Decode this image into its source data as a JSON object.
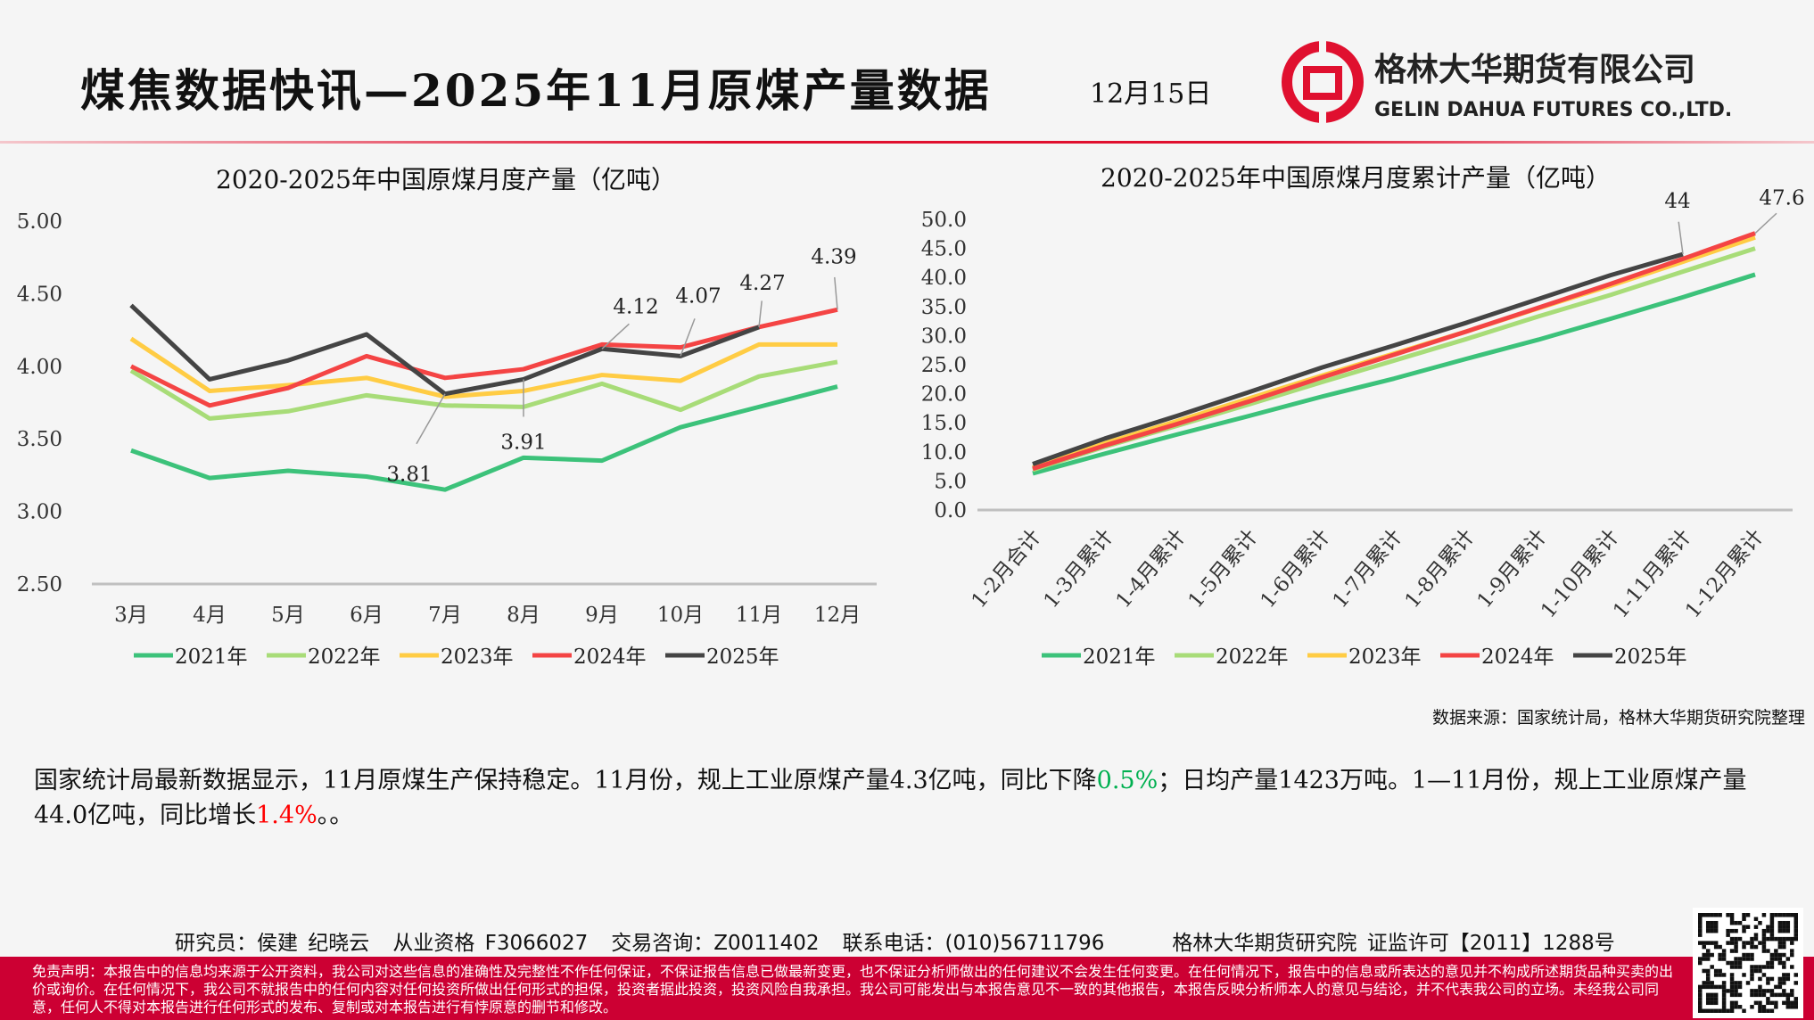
{
  "header": {
    "title": "煤焦数据快讯—2025年11月原煤产量数据",
    "date": "12月15日",
    "logo_cn": "格林大华期货有限公司",
    "logo_en": "GELIN DAHUA FUTURES CO.,LTD."
  },
  "colors": {
    "accent": "#e0102f",
    "s2021": "#3cc27a",
    "s2022": "#a8dc78",
    "s2023": "#ffcc44",
    "s2024": "#f44444",
    "s2025": "#444444"
  },
  "chart_data": [
    {
      "type": "line",
      "title": "2020-2025年中国原煤月度产量（亿吨）",
      "categories": [
        "3月",
        "4月",
        "5月",
        "6月",
        "7月",
        "8月",
        "9月",
        "10月",
        "11月",
        "12月"
      ],
      "ylim": [
        2.5,
        5.0
      ],
      "yticks": [
        "5.00",
        "4.50",
        "4.00",
        "3.50",
        "3.00",
        "2.50"
      ],
      "legend": "bottom",
      "grid": false,
      "series": [
        {
          "name": "2021年",
          "values": [
            3.42,
            3.23,
            3.28,
            3.24,
            3.15,
            3.37,
            3.35,
            3.58,
            3.72,
            3.86
          ]
        },
        {
          "name": "2022年",
          "values": [
            3.97,
            3.64,
            3.69,
            3.8,
            3.73,
            3.72,
            3.88,
            3.7,
            3.93,
            4.03
          ]
        },
        {
          "name": "2023年",
          "values": [
            4.19,
            3.83,
            3.87,
            3.92,
            3.79,
            3.83,
            3.94,
            3.9,
            4.15,
            4.15
          ]
        },
        {
          "name": "2024年",
          "values": [
            4.0,
            3.73,
            3.85,
            4.07,
            3.92,
            3.98,
            4.15,
            4.13,
            4.27,
            4.39
          ]
        },
        {
          "name": "2025年",
          "values": [
            4.42,
            3.91,
            4.04,
            4.22,
            3.81,
            3.91,
            4.12,
            4.07,
            4.27,
            null
          ]
        }
      ],
      "labels": [
        {
          "series": 4,
          "index": 4,
          "text": "3.81",
          "dx": -40,
          "dy": 80
        },
        {
          "series": 4,
          "index": 5,
          "text": "3.91",
          "dx": 0,
          "dy": 60
        },
        {
          "series": 4,
          "index": 6,
          "text": "4.12",
          "dx": 38,
          "dy": -40
        },
        {
          "series": 4,
          "index": 7,
          "text": "4.07",
          "dx": 20,
          "dy": -60
        },
        {
          "series": 4,
          "index": 8,
          "text": "4.27",
          "dx": 4,
          "dy": -42
        },
        {
          "series": 3,
          "index": 9,
          "text": "4.39",
          "dx": -4,
          "dy": -52
        }
      ]
    },
    {
      "type": "line",
      "title": "2020-2025年中国原煤月度累计产量（亿吨）",
      "categories": [
        "1-2月合计",
        "1-3月累计",
        "1-4月累计",
        "1-5月累计",
        "1-6月累计",
        "1-7月累计",
        "1-8月累计",
        "1-9月累计",
        "1-10月累计",
        "1-11月累计",
        "1-12月累计"
      ],
      "ylim": [
        0,
        50
      ],
      "yticks": [
        "50.0",
        "45.0",
        "40.0",
        "35.0",
        "30.0",
        "25.0",
        "20.0",
        "15.0",
        "10.0",
        "5.0",
        "0.0"
      ],
      "legend": "bottom",
      "grid": false,
      "series": [
        {
          "name": "2021年",
          "values": [
            6.3,
            9.7,
            13.0,
            16.2,
            19.5,
            22.6,
            26.0,
            29.3,
            32.9,
            36.6,
            40.5
          ]
        },
        {
          "name": "2022年",
          "values": [
            6.9,
            10.9,
            14.5,
            18.2,
            22.0,
            25.7,
            29.4,
            33.3,
            37.0,
            41.0,
            45.0
          ]
        },
        {
          "name": "2023年",
          "values": [
            7.3,
            11.5,
            15.3,
            19.2,
            23.1,
            26.9,
            30.7,
            34.7,
            38.6,
            42.7,
            46.9
          ]
        },
        {
          "name": "2024年",
          "values": [
            7.1,
            11.1,
            14.8,
            18.7,
            22.8,
            26.7,
            30.7,
            34.8,
            38.9,
            43.2,
            47.6
          ]
        },
        {
          "name": "2025年",
          "values": [
            7.9,
            12.3,
            16.2,
            20.3,
            24.5,
            28.3,
            32.2,
            36.3,
            40.4,
            44.0,
            null
          ]
        }
      ],
      "labels": [
        {
          "series": 4,
          "index": 9,
          "text": "44",
          "dx": -6,
          "dy": -52
        },
        {
          "series": 3,
          "index": 10,
          "text": "47.6",
          "dx": 30,
          "dy": -32
        }
      ]
    }
  ],
  "source": "数据来源：国家统计局，格林大华期货研究院整理",
  "paragraph": {
    "p1": "国家统计局最新数据显示，11月原煤生产保持稳定。11月份，规上工业原煤产量4.3亿吨，同比下降",
    "v1": "0.5%",
    "p2": "；日均产量1423万吨。1—11月份，规上工业原煤产量44.0亿吨，同比增长",
    "v2": "1.4%",
    "p3": "。。"
  },
  "credits": {
    "researcher": "研究员：侯建 纪晓云",
    "license": "从业资格 F3066027",
    "consult": "交易咨询：Z0011402",
    "phone": "联系电话：(010)56711796",
    "institute": "格林大华期货研究院  证监许可【2011】1288号"
  },
  "disclaimer": "免责声明：本报告中的信息均来源于公开资料，我公司对这些信息的准确性及完整性不作任何保证，不保证报告信息已做最新变更，也不保证分析师做出的任何建议不会发生任何变更。在任何情况下，报告中的信息或所表达的意见并不构成所述期货品种买卖的出价或询价。在任何情况下，我公司不就报告中的任何内容对任何投资所做出任何形式的担保，投资者据此投资，投资风险自我承担。我公司可能发出与本报告意见不一致的其他报告，本报告反映分析师本人的意见与结论，并不代表我公司的立场。未经我公司同意，任何人不得对本报告进行任何形式的发布、复制或对本报告进行有悖原意的删节和修改。"
}
